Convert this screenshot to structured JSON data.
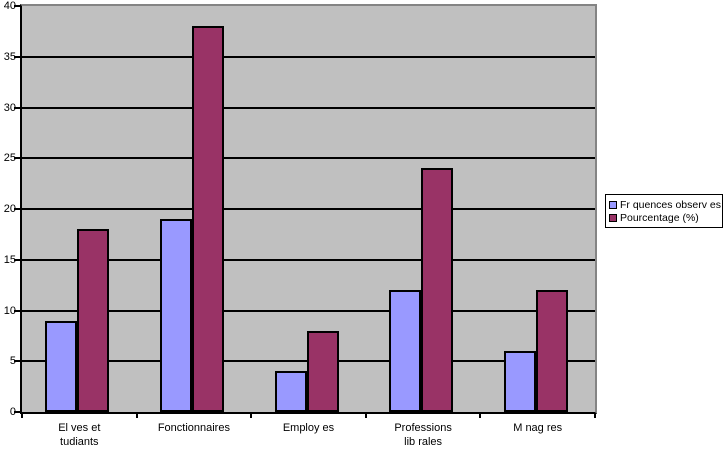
{
  "chart_data": {
    "type": "bar",
    "title": "",
    "xlabel": "",
    "ylabel": "",
    "categories": [
      "El ves et\ntudiants",
      "Fonctionnaires",
      "Employ es",
      "Professions\nlib rales",
      "M nag res"
    ],
    "series": [
      {
        "name": "Fr quences observ es",
        "color": "#9999ff",
        "values": [
          9,
          19,
          4,
          12,
          6
        ]
      },
      {
        "name": "Pourcentage (%)",
        "color": "#993366",
        "values": [
          18,
          38,
          8,
          24,
          12
        ]
      }
    ],
    "ylim": [
      0,
      40
    ],
    "yticks": [
      0,
      5,
      10,
      15,
      20,
      25,
      30,
      35,
      40
    ],
    "grid": true,
    "legend_position": "right",
    "colors": {
      "plot_background": "#c0c0c0",
      "plot_border": "#848484",
      "gridline": "#000000",
      "axis": "#000000",
      "bar_border": "#000000",
      "page_background": "#ffffff"
    }
  }
}
